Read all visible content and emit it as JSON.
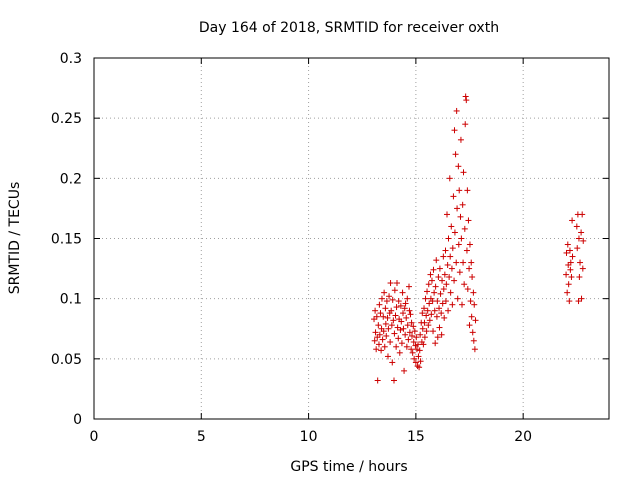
{
  "chart_data": {
    "type": "scatter",
    "title": "Day 164 of 2018, SRMTID for receiver oxth",
    "xlabel": "GPS time / hours",
    "ylabel": "SRMTID / TECUs",
    "xlim": [
      0,
      24
    ],
    "ylim": [
      0,
      0.3
    ],
    "x_ticks": [
      0,
      5,
      10,
      15,
      20
    ],
    "x_tick_labels": [
      "0",
      "5",
      "10",
      "15",
      "20"
    ],
    "y_ticks": [
      0,
      0.05,
      0.1,
      0.15,
      0.2,
      0.25,
      0.3
    ],
    "y_tick_labels": [
      "0",
      "0.05",
      "0.1",
      "0.15",
      "0.2",
      "0.25",
      "0.3"
    ],
    "grid": true,
    "marker": "+",
    "color": "#cc0000",
    "series": [
      {
        "points": [
          [
            13.05,
            0.083
          ],
          [
            13.08,
            0.065
          ],
          [
            13.1,
            0.09
          ],
          [
            13.12,
            0.072
          ],
          [
            13.15,
            0.058
          ],
          [
            13.18,
            0.085
          ],
          [
            13.2,
            0.068
          ],
          [
            13.22,
            0.032
          ],
          [
            13.25,
            0.078
          ],
          [
            13.28,
            0.062
          ],
          [
            13.3,
            0.095
          ],
          [
            13.32,
            0.07
          ],
          [
            13.35,
            0.088
          ],
          [
            13.38,
            0.057
          ],
          [
            13.4,
            0.075
          ],
          [
            13.42,
            0.1
          ],
          [
            13.45,
            0.066
          ],
          [
            13.48,
            0.085
          ],
          [
            13.5,
            0.073
          ],
          [
            13.52,
            0.105
          ],
          [
            13.55,
            0.06
          ],
          [
            13.58,
            0.092
          ],
          [
            13.6,
            0.079
          ],
          [
            13.62,
            0.069
          ],
          [
            13.65,
            0.098
          ],
          [
            13.68,
            0.084
          ],
          [
            13.7,
            0.052
          ],
          [
            13.72,
            0.075
          ],
          [
            13.75,
            0.102
          ],
          [
            13.78,
            0.088
          ],
          [
            13.8,
            0.064
          ],
          [
            13.82,
            0.113
          ],
          [
            13.85,
            0.09
          ],
          [
            13.88,
            0.078
          ],
          [
            13.9,
            0.047
          ],
          [
            13.92,
            0.099
          ],
          [
            13.95,
            0.082
          ],
          [
            13.98,
            0.032
          ],
          [
            14.0,
            0.071
          ],
          [
            14.02,
            0.107
          ],
          [
            14.05,
            0.086
          ],
          [
            14.08,
            0.06
          ],
          [
            14.1,
            0.093
          ],
          [
            14.12,
            0.113
          ],
          [
            14.15,
            0.076
          ],
          [
            14.18,
            0.067
          ],
          [
            14.2,
            0.098
          ],
          [
            14.22,
            0.083
          ],
          [
            14.25,
            0.055
          ],
          [
            14.28,
            0.074
          ],
          [
            14.3,
            0.094
          ],
          [
            14.32,
            0.081
          ],
          [
            14.35,
            0.063
          ],
          [
            14.38,
            0.105
          ],
          [
            14.4,
            0.088
          ],
          [
            14.42,
            0.075
          ],
          [
            14.45,
            0.04
          ],
          [
            14.48,
            0.092
          ],
          [
            14.5,
            0.07
          ],
          [
            14.52,
            0.096
          ],
          [
            14.55,
            0.084
          ],
          [
            14.58,
            0.06
          ],
          [
            14.6,
            0.1
          ],
          [
            14.62,
            0.078
          ],
          [
            14.65,
            0.066
          ],
          [
            14.68,
            0.11
          ],
          [
            14.7,
            0.09
          ],
          [
            14.72,
            0.072
          ],
          [
            14.75,
            0.087
          ],
          [
            14.78,
            0.058
          ],
          [
            14.8,
            0.08
          ],
          [
            14.82,
            0.069
          ],
          [
            14.85,
            0.055
          ],
          [
            14.88,
            0.077
          ],
          [
            14.9,
            0.064
          ],
          [
            14.92,
            0.05
          ],
          [
            14.95,
            0.073
          ],
          [
            14.98,
            0.061
          ],
          [
            15.0,
            0.047
          ],
          [
            15.02,
            0.068
          ],
          [
            15.05,
            0.058
          ],
          [
            15.08,
            0.044
          ],
          [
            15.1,
            0.062
          ],
          [
            15.12,
            0.052
          ],
          [
            15.15,
            0.043
          ],
          [
            15.18,
            0.057
          ],
          [
            15.2,
            0.07
          ],
          [
            15.22,
            0.048
          ],
          [
            15.25,
            0.08
          ],
          [
            15.28,
            0.064
          ],
          [
            15.3,
            0.088
          ],
          [
            15.32,
            0.075
          ],
          [
            15.35,
            0.062
          ],
          [
            15.38,
            0.092
          ],
          [
            15.4,
            0.08
          ],
          [
            15.42,
            0.068
          ],
          [
            15.45,
            0.1
          ],
          [
            15.48,
            0.086
          ],
          [
            15.5,
            0.073
          ],
          [
            15.52,
            0.106
          ],
          [
            15.55,
            0.09
          ],
          [
            15.58,
            0.078
          ],
          [
            15.6,
            0.112
          ],
          [
            15.62,
            0.096
          ],
          [
            15.65,
            0.082
          ],
          [
            15.68,
            0.12
          ],
          [
            15.7,
            0.1
          ],
          [
            15.72,
            0.087
          ],
          [
            15.75,
            0.115
          ],
          [
            15.78,
            0.098
          ],
          [
            15.8,
            0.073
          ],
          [
            15.82,
            0.124
          ],
          [
            15.85,
            0.105
          ],
          [
            15.88,
            0.09
          ],
          [
            15.9,
            0.063
          ],
          [
            15.92,
            0.11
          ],
          [
            15.95,
            0.132
          ],
          [
            15.98,
            0.085
          ],
          [
            16.0,
            0.098
          ],
          [
            16.02,
            0.068
          ],
          [
            16.05,
            0.118
          ],
          [
            16.08,
            0.092
          ],
          [
            16.1,
            0.076
          ],
          [
            16.12,
            0.125
          ],
          [
            16.15,
            0.104
          ],
          [
            16.18,
            0.088
          ],
          [
            16.2,
            0.07
          ],
          [
            16.22,
            0.115
          ],
          [
            16.25,
            0.096
          ],
          [
            16.28,
            0.135
          ],
          [
            16.3,
            0.108
          ],
          [
            16.32,
            0.084
          ],
          [
            16.35,
            0.12
          ],
          [
            16.38,
            0.14
          ],
          [
            16.4,
            0.098
          ],
          [
            16.42,
            0.112
          ],
          [
            16.45,
            0.17
          ],
          [
            16.48,
            0.128
          ],
          [
            16.5,
            0.09
          ],
          [
            16.52,
            0.15
          ],
          [
            16.55,
            0.118
          ],
          [
            16.58,
            0.2
          ],
          [
            16.6,
            0.135
          ],
          [
            16.62,
            0.105
          ],
          [
            16.65,
            0.16
          ],
          [
            16.68,
            0.125
          ],
          [
            16.7,
            0.095
          ],
          [
            16.72,
            0.142
          ],
          [
            16.75,
            0.185
          ],
          [
            16.78,
            0.115
          ],
          [
            16.8,
            0.24
          ],
          [
            16.82,
            0.155
          ],
          [
            16.85,
            0.22
          ],
          [
            16.88,
            0.13
          ],
          [
            16.9,
            0.256
          ],
          [
            16.92,
            0.175
          ],
          [
            16.95,
            0.1
          ],
          [
            16.98,
            0.21
          ],
          [
            17.0,
            0.145
          ],
          [
            17.02,
            0.19
          ],
          [
            17.05,
            0.122
          ],
          [
            17.08,
            0.168
          ],
          [
            17.1,
            0.232
          ],
          [
            17.12,
            0.15
          ],
          [
            17.15,
            0.095
          ],
          [
            17.18,
            0.178
          ],
          [
            17.2,
            0.13
          ],
          [
            17.22,
            0.205
          ],
          [
            17.25,
            0.112
          ],
          [
            17.28,
            0.158
          ],
          [
            17.3,
            0.245
          ],
          [
            17.32,
            0.268
          ],
          [
            17.35,
            0.265
          ],
          [
            17.38,
            0.14
          ],
          [
            17.4,
            0.19
          ],
          [
            17.42,
            0.108
          ],
          [
            17.45,
            0.165
          ],
          [
            17.48,
            0.125
          ],
          [
            17.5,
            0.078
          ],
          [
            17.52,
            0.145
          ],
          [
            17.55,
            0.098
          ],
          [
            17.58,
            0.13
          ],
          [
            17.6,
            0.085
          ],
          [
            17.62,
            0.118
          ],
          [
            17.65,
            0.072
          ],
          [
            17.68,
            0.105
          ],
          [
            17.7,
            0.065
          ],
          [
            17.72,
            0.095
          ],
          [
            17.75,
            0.058
          ],
          [
            17.78,
            0.082
          ],
          [
            22.0,
            0.12
          ],
          [
            22.02,
            0.138
          ],
          [
            22.05,
            0.105
          ],
          [
            22.08,
            0.145
          ],
          [
            22.1,
            0.128
          ],
          [
            22.12,
            0.112
          ],
          [
            22.15,
            0.098
          ],
          [
            22.18,
            0.14
          ],
          [
            22.2,
            0.124
          ],
          [
            22.22,
            0.13
          ],
          [
            22.25,
            0.118
          ],
          [
            22.28,
            0.165
          ],
          [
            22.3,
            0.135
          ],
          [
            22.5,
            0.16
          ],
          [
            22.52,
            0.142
          ],
          [
            22.55,
            0.17
          ],
          [
            22.58,
            0.098
          ],
          [
            22.6,
            0.15
          ],
          [
            22.62,
            0.118
          ],
          [
            22.65,
            0.13
          ],
          [
            22.7,
            0.155
          ],
          [
            22.72,
            0.1
          ],
          [
            22.75,
            0.17
          ],
          [
            22.78,
            0.125
          ],
          [
            22.8,
            0.148
          ]
        ]
      }
    ]
  }
}
